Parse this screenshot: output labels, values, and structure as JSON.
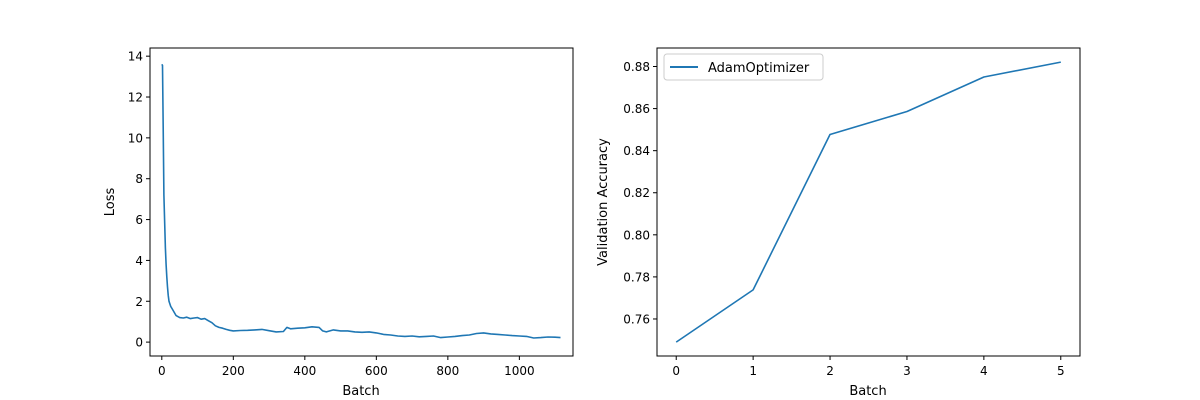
{
  "chart_data": [
    {
      "type": "line",
      "title": "",
      "xlabel": "Batch",
      "ylabel": "Loss",
      "xlim": [
        -33,
        1150
      ],
      "ylim": [
        -0.68,
        14.4
      ],
      "xticks": [
        "0",
        "200",
        "400",
        "600",
        "800",
        "1000"
      ],
      "yticks": [
        "0",
        "2",
        "4",
        "6",
        "8",
        "10",
        "12",
        "14"
      ],
      "grid": false,
      "series": [
        {
          "color": "#1f77b4",
          "x": [
            0,
            2,
            4,
            6,
            8,
            10,
            12,
            14,
            16,
            18,
            20,
            25,
            30,
            35,
            40,
            50,
            60,
            70,
            80,
            90,
            100,
            110,
            120,
            130,
            140,
            150,
            160,
            170,
            180,
            190,
            200,
            220,
            240,
            260,
            280,
            300,
            320,
            340,
            350,
            360,
            380,
            400,
            420,
            440,
            450,
            460,
            480,
            500,
            520,
            540,
            560,
            580,
            600,
            620,
            640,
            660,
            680,
            700,
            720,
            740,
            760,
            780,
            800,
            820,
            840,
            860,
            880,
            900,
            920,
            940,
            960,
            980,
            1000,
            1020,
            1040,
            1060,
            1080,
            1100,
            1115
          ],
          "y": [
            13.6,
            13.55,
            10.5,
            7.2,
            5.8,
            4.6,
            3.8,
            3.2,
            2.7,
            2.3,
            2.0,
            1.75,
            1.6,
            1.45,
            1.3,
            1.2,
            1.18,
            1.22,
            1.15,
            1.18,
            1.2,
            1.12,
            1.15,
            1.05,
            0.95,
            0.8,
            0.72,
            0.68,
            0.62,
            0.58,
            0.55,
            0.57,
            0.58,
            0.6,
            0.62,
            0.56,
            0.5,
            0.52,
            0.72,
            0.65,
            0.68,
            0.7,
            0.75,
            0.72,
            0.55,
            0.5,
            0.6,
            0.55,
            0.55,
            0.5,
            0.48,
            0.5,
            0.45,
            0.38,
            0.35,
            0.3,
            0.28,
            0.3,
            0.26,
            0.28,
            0.3,
            0.22,
            0.25,
            0.28,
            0.32,
            0.35,
            0.42,
            0.45,
            0.4,
            0.38,
            0.35,
            0.32,
            0.3,
            0.28,
            0.2,
            0.22,
            0.25,
            0.24,
            0.22
          ]
        }
      ]
    },
    {
      "type": "line",
      "title": "",
      "xlabel": "Batch",
      "ylabel": "Validation Accuracy",
      "xlim": [
        -0.25,
        5.25
      ],
      "ylim": [
        0.7424,
        0.8888
      ],
      "xticks": [
        "0",
        "1",
        "2",
        "3",
        "4",
        "5"
      ],
      "yticks": [
        "0.76",
        "0.78",
        "0.80",
        "0.82",
        "0.84",
        "0.86",
        "0.88"
      ],
      "grid": false,
      "legend": "upper-left",
      "series": [
        {
          "name": "AdamOptimizer",
          "color": "#1f77b4",
          "x": [
            0,
            1,
            2,
            3,
            4,
            5
          ],
          "y": [
            0.749,
            0.7738,
            0.8477,
            0.8586,
            0.875,
            0.8821
          ]
        }
      ]
    }
  ]
}
